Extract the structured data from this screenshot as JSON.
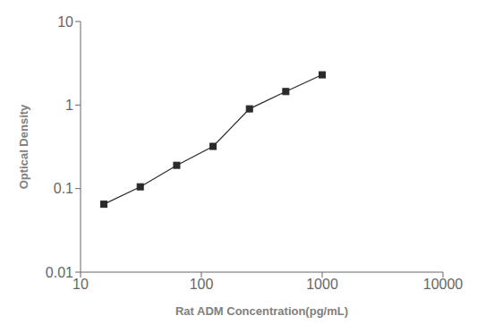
{
  "chart_data": {
    "type": "line",
    "x": [
      15.6,
      31.2,
      62.5,
      125,
      250,
      500,
      1000
    ],
    "values": [
      0.065,
      0.105,
      0.19,
      0.32,
      0.9,
      1.45,
      2.3
    ],
    "xlabel": "Rat ADM Concentration(pg/mL)",
    "ylabel": "Optical Density",
    "xlim": [
      10,
      10000
    ],
    "ylim": [
      0.01,
      10
    ],
    "xticks": [
      10,
      100,
      1000,
      10000
    ],
    "yticks": [
      0.01,
      0.1,
      1,
      10
    ],
    "log": true,
    "color": "#2a2a2a",
    "marker": "square",
    "grid": false
  }
}
